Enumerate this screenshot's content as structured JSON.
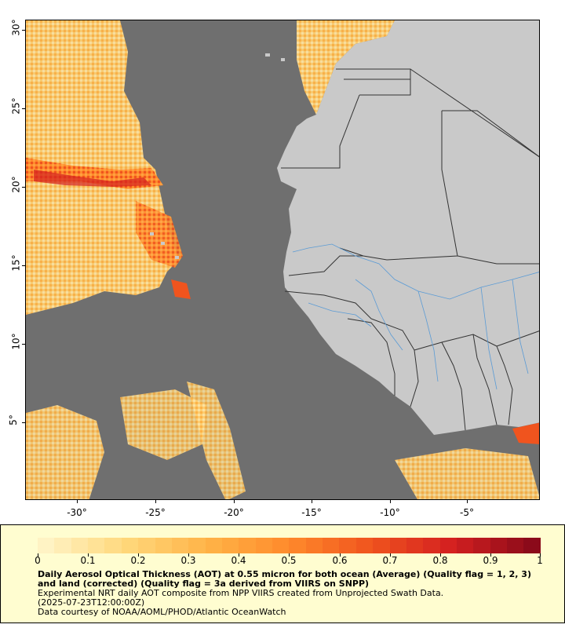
{
  "map": {
    "y_ticks": [
      "30°",
      "25°",
      "20°",
      "15°",
      "10°",
      "5°"
    ],
    "x_ticks": [
      "-30°",
      "-25°",
      "-20°",
      "-15°",
      "-10°",
      "-5°"
    ],
    "colors": {
      "ocean_no_data": "#6f6f6f",
      "land": "#c9c9c9",
      "borders": "#333333",
      "rivers": "#5b9bd5"
    }
  },
  "legend": {
    "scale_labels": [
      "0",
      "0.1",
      "0.2",
      "0.3",
      "0.4",
      "0.5",
      "0.6",
      "0.7",
      "0.8",
      "0.9",
      "1"
    ],
    "color_range": [
      "#fff3c4",
      "#ffd77a",
      "#ffb347",
      "#ff8a2b",
      "#f0541e",
      "#d42020",
      "#8b0a1a"
    ],
    "title": "Daily Aerosol Optical Thickness (AOT) at 0.55 micron for both ocean (Average) (Quality flag = 1, 2, 3) and land (corrected) (Quality flag = 3a derived from VIIRS on SNPP)",
    "line1": "Experimental NRT daily AOT composite from NPP VIIRS created from Unprojected Swath Data.",
    "line2": "(2025-07-23T12:00:00Z)",
    "line3": "Data courtesy of NOAA/AOML/PHOD/Atlantic OceanWatch"
  }
}
